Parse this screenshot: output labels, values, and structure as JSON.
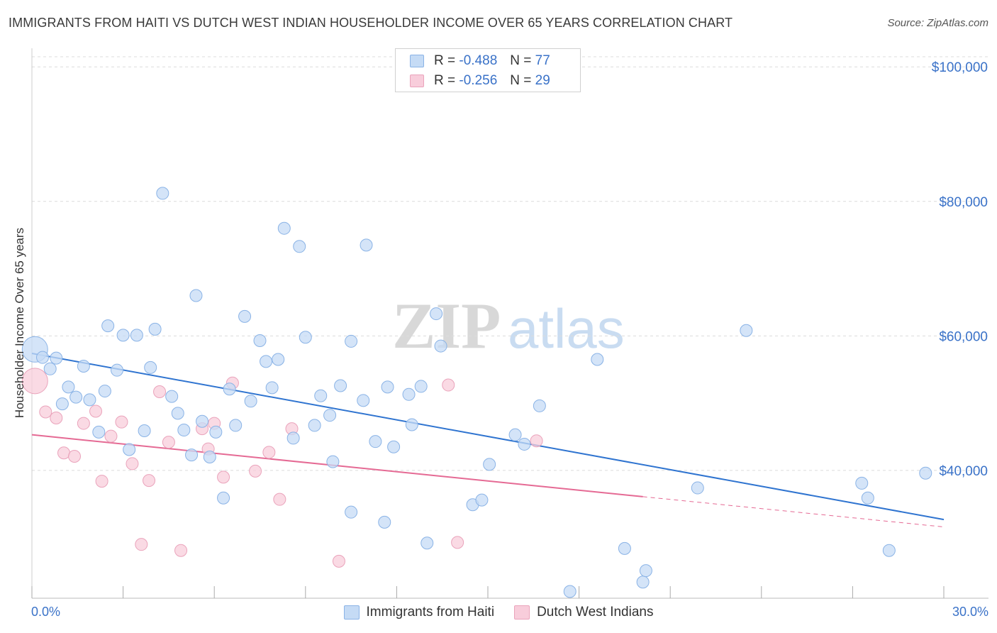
{
  "title": "IMMIGRANTS FROM HAITI VS DUTCH WEST INDIAN HOUSEHOLDER INCOME OVER 65 YEARS CORRELATION CHART",
  "source": "Source: ZipAtlas.com",
  "watermark": {
    "zip": "ZIP",
    "atlas": "atlas"
  },
  "legend": {
    "r_label": "R =",
    "n_label": "N =",
    "series": [
      {
        "r": "-0.488",
        "n": "77"
      },
      {
        "r": "-0.256",
        "n": "29"
      }
    ]
  },
  "colors": {
    "blue_fill": "#c5dbf5",
    "blue_stroke": "#8ab3e6",
    "blue_line": "#2f74d0",
    "pink_fill": "#f8cddb",
    "pink_stroke": "#eaa3bb",
    "pink_line": "#e56a94",
    "tick_text": "#3a72c8",
    "grid": "#dcdcdc"
  },
  "chart_data": {
    "type": "scatter",
    "title": "IMMIGRANTS FROM HAITI VS DUTCH WEST INDIAN HOUSEHOLDER INCOME OVER 65 YEARS CORRELATION CHART",
    "xlabel": "",
    "ylabel": "Householder Income Over 65 years",
    "xlim": [
      0,
      30
    ],
    "ylim": [
      21000,
      101500
    ],
    "x_tick_labels": [
      "0.0%",
      "30.0%"
    ],
    "y_ticks": [
      40000,
      60000,
      80000,
      100000
    ],
    "y_tick_labels": [
      "$40,000",
      "$60,000",
      "$80,000",
      "$100,000"
    ],
    "series": [
      {
        "name": "Immigrants from Haiti",
        "color": "#8ab3e6",
        "points": [
          {
            "x": 0.1,
            "y": 58000,
            "big": true
          },
          {
            "x": 0.35,
            "y": 56800
          },
          {
            "x": 0.6,
            "y": 55100
          },
          {
            "x": 0.8,
            "y": 56700
          },
          {
            "x": 1.0,
            "y": 49900
          },
          {
            "x": 1.2,
            "y": 52400
          },
          {
            "x": 1.45,
            "y": 50900
          },
          {
            "x": 1.7,
            "y": 55500
          },
          {
            "x": 1.9,
            "y": 50500
          },
          {
            "x": 2.2,
            "y": 45700
          },
          {
            "x": 2.4,
            "y": 51800
          },
          {
            "x": 2.5,
            "y": 61500
          },
          {
            "x": 2.8,
            "y": 54900
          },
          {
            "x": 3.0,
            "y": 60100
          },
          {
            "x": 3.2,
            "y": 43100
          },
          {
            "x": 3.45,
            "y": 60100
          },
          {
            "x": 3.7,
            "y": 45900
          },
          {
            "x": 3.9,
            "y": 55300
          },
          {
            "x": 4.05,
            "y": 61000
          },
          {
            "x": 4.3,
            "y": 81200
          },
          {
            "x": 4.6,
            "y": 51000
          },
          {
            "x": 4.8,
            "y": 48500
          },
          {
            "x": 5.0,
            "y": 46000
          },
          {
            "x": 5.25,
            "y": 42300
          },
          {
            "x": 5.4,
            "y": 66000
          },
          {
            "x": 5.6,
            "y": 47300
          },
          {
            "x": 5.85,
            "y": 42000
          },
          {
            "x": 6.05,
            "y": 45700
          },
          {
            "x": 6.3,
            "y": 35900
          },
          {
            "x": 6.5,
            "y": 52100
          },
          {
            "x": 6.7,
            "y": 46700
          },
          {
            "x": 7.0,
            "y": 62900
          },
          {
            "x": 7.2,
            "y": 50300
          },
          {
            "x": 7.5,
            "y": 59300
          },
          {
            "x": 7.7,
            "y": 56200
          },
          {
            "x": 7.9,
            "y": 52300
          },
          {
            "x": 8.1,
            "y": 56500
          },
          {
            "x": 8.3,
            "y": 76000
          },
          {
            "x": 8.6,
            "y": 44800
          },
          {
            "x": 8.8,
            "y": 73300
          },
          {
            "x": 9.0,
            "y": 59800
          },
          {
            "x": 9.3,
            "y": 46700
          },
          {
            "x": 9.5,
            "y": 51100
          },
          {
            "x": 9.8,
            "y": 48200
          },
          {
            "x": 9.9,
            "y": 41300
          },
          {
            "x": 10.15,
            "y": 52600
          },
          {
            "x": 10.5,
            "y": 59200
          },
          {
            "x": 10.5,
            "y": 33800
          },
          {
            "x": 10.9,
            "y": 50400
          },
          {
            "x": 11.0,
            "y": 73500
          },
          {
            "x": 11.3,
            "y": 44300
          },
          {
            "x": 11.6,
            "y": 32300
          },
          {
            "x": 11.7,
            "y": 52400
          },
          {
            "x": 11.9,
            "y": 43500
          },
          {
            "x": 12.4,
            "y": 51300
          },
          {
            "x": 12.5,
            "y": 46800
          },
          {
            "x": 12.8,
            "y": 52500
          },
          {
            "x": 13.0,
            "y": 29200
          },
          {
            "x": 13.3,
            "y": 63300
          },
          {
            "x": 13.45,
            "y": 58500
          },
          {
            "x": 14.5,
            "y": 34900
          },
          {
            "x": 14.8,
            "y": 35600
          },
          {
            "x": 15.05,
            "y": 40900
          },
          {
            "x": 15.9,
            "y": 45300
          },
          {
            "x": 16.2,
            "y": 43900
          },
          {
            "x": 16.7,
            "y": 49600
          },
          {
            "x": 17.7,
            "y": 22000
          },
          {
            "x": 18.6,
            "y": 56500
          },
          {
            "x": 19.5,
            "y": 28400
          },
          {
            "x": 20.1,
            "y": 23400
          },
          {
            "x": 20.2,
            "y": 25100
          },
          {
            "x": 21.9,
            "y": 37400
          },
          {
            "x": 23.5,
            "y": 60800
          },
          {
            "x": 27.3,
            "y": 38100
          },
          {
            "x": 27.5,
            "y": 35900
          },
          {
            "x": 28.2,
            "y": 28100
          },
          {
            "x": 29.4,
            "y": 39600
          }
        ]
      },
      {
        "name": "Dutch West Indians",
        "color": "#eaa3bb",
        "points": [
          {
            "x": 0.1,
            "y": 53300,
            "big": true
          },
          {
            "x": 0.45,
            "y": 48700
          },
          {
            "x": 0.8,
            "y": 47800
          },
          {
            "x": 1.05,
            "y": 42600
          },
          {
            "x": 1.4,
            "y": 42100
          },
          {
            "x": 1.7,
            "y": 47000
          },
          {
            "x": 2.1,
            "y": 48800
          },
          {
            "x": 2.3,
            "y": 38400
          },
          {
            "x": 2.6,
            "y": 45100
          },
          {
            "x": 2.95,
            "y": 47200
          },
          {
            "x": 3.3,
            "y": 41000
          },
          {
            "x": 3.6,
            "y": 29000
          },
          {
            "x": 3.85,
            "y": 38500
          },
          {
            "x": 4.2,
            "y": 51700
          },
          {
            "x": 4.5,
            "y": 44200
          },
          {
            "x": 4.9,
            "y": 28100
          },
          {
            "x": 5.6,
            "y": 46200
          },
          {
            "x": 5.8,
            "y": 43200
          },
          {
            "x": 6.0,
            "y": 47000
          },
          {
            "x": 6.3,
            "y": 39000
          },
          {
            "x": 6.6,
            "y": 53000
          },
          {
            "x": 7.35,
            "y": 39900
          },
          {
            "x": 7.8,
            "y": 42700
          },
          {
            "x": 8.15,
            "y": 35700
          },
          {
            "x": 8.55,
            "y": 46200
          },
          {
            "x": 10.1,
            "y": 26500
          },
          {
            "x": 13.7,
            "y": 52700
          },
          {
            "x": 14.0,
            "y": 29300
          },
          {
            "x": 16.6,
            "y": 44400
          }
        ]
      }
    ],
    "trendlines": [
      {
        "series": "Immigrants from Haiti",
        "x": [
          0,
          30
        ],
        "y": [
          57400,
          32700
        ]
      },
      {
        "series": "Dutch West Indians",
        "x": [
          0,
          20.1
        ],
        "y": [
          45300,
          36100
        ],
        "dashed_to": [
          30,
          31600
        ]
      }
    ]
  }
}
